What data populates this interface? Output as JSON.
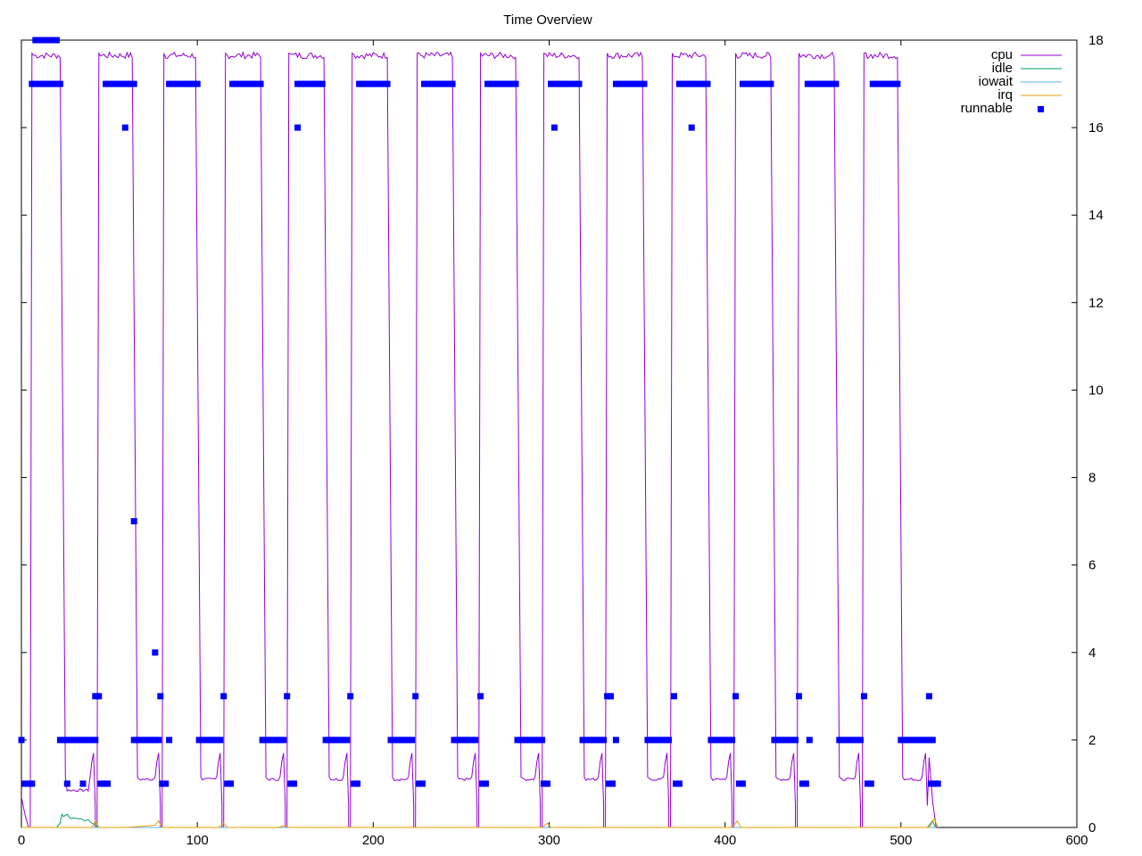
{
  "chart_data": {
    "type": "line",
    "title": "Time Overview",
    "xlabel": "",
    "ylabel": "",
    "xlim": [
      0,
      600
    ],
    "ylim": [
      0,
      18
    ],
    "x_ticks": [
      0,
      100,
      200,
      300,
      400,
      500,
      600
    ],
    "y_ticks": [
      0,
      2,
      4,
      6,
      8,
      10,
      12,
      14,
      16,
      18
    ],
    "y_axis_side": "right",
    "grid": false,
    "legend_position": "top-right",
    "cycles": [
      {
        "rise": 10,
        "fall": 22
      },
      {
        "rise": 48,
        "fall": 63
      },
      {
        "rise": 85,
        "fall": 99
      },
      {
        "rise": 120,
        "fall": 136
      },
      {
        "rise": 156,
        "fall": 172
      },
      {
        "rise": 192,
        "fall": 208
      },
      {
        "rise": 229,
        "fall": 245
      },
      {
        "rise": 265,
        "fall": 281
      },
      {
        "rise": 301,
        "fall": 317
      },
      {
        "rise": 337,
        "fall": 353
      },
      {
        "rise": 374,
        "fall": 389
      },
      {
        "rise": 410,
        "fall": 426
      },
      {
        "rise": 446,
        "fall": 462
      },
      {
        "rise": 483,
        "fall": 498
      }
    ],
    "runnable_points": [
      [
        0,
        2
      ],
      [
        2,
        1
      ],
      [
        4,
        1
      ],
      [
        6,
        1
      ],
      [
        8,
        18
      ],
      [
        10,
        18
      ],
      [
        12,
        18
      ],
      [
        14,
        18
      ],
      [
        16,
        18
      ],
      [
        18,
        18
      ],
      [
        20,
        18
      ],
      [
        6,
        17
      ],
      [
        8,
        17
      ],
      [
        10,
        17
      ],
      [
        12,
        17
      ],
      [
        14,
        17
      ],
      [
        16,
        17
      ],
      [
        18,
        17
      ],
      [
        20,
        17
      ],
      [
        22,
        17
      ],
      [
        22,
        2
      ],
      [
        24,
        2
      ],
      [
        26,
        2
      ],
      [
        28,
        2
      ],
      [
        30,
        2
      ],
      [
        32,
        2
      ],
      [
        34,
        2
      ],
      [
        36,
        2
      ],
      [
        38,
        2
      ],
      [
        40,
        2
      ],
      [
        42,
        2
      ],
      [
        26,
        1
      ],
      [
        35,
        1
      ],
      [
        42,
        3
      ],
      [
        44,
        3
      ],
      [
        45,
        1
      ],
      [
        47,
        1
      ],
      [
        49,
        1
      ],
      [
        48,
        17
      ],
      [
        50,
        17
      ],
      [
        52,
        17
      ],
      [
        54,
        17
      ],
      [
        56,
        17
      ],
      [
        58,
        17
      ],
      [
        60,
        17
      ],
      [
        62,
        17
      ],
      [
        64,
        17
      ],
      [
        59,
        16
      ],
      [
        64,
        7
      ],
      [
        64,
        2
      ],
      [
        66,
        2
      ],
      [
        68,
        2
      ],
      [
        70,
        2
      ],
      [
        72,
        2
      ],
      [
        74,
        2
      ],
      [
        76,
        2
      ],
      [
        78,
        2
      ],
      [
        84,
        2
      ],
      [
        76,
        4
      ],
      [
        79,
        3
      ],
      [
        80,
        1
      ],
      [
        82,
        1
      ],
      [
        84,
        17
      ],
      [
        86,
        17
      ],
      [
        88,
        17
      ],
      [
        90,
        17
      ],
      [
        92,
        17
      ],
      [
        94,
        17
      ],
      [
        96,
        17
      ],
      [
        98,
        17
      ],
      [
        100,
        17
      ],
      [
        101,
        2
      ],
      [
        103,
        2
      ],
      [
        105,
        2
      ],
      [
        107,
        2
      ],
      [
        109,
        2
      ],
      [
        111,
        2
      ],
      [
        113,
        2
      ],
      [
        115,
        3
      ],
      [
        117,
        1
      ],
      [
        119,
        1
      ],
      [
        120,
        17
      ],
      [
        122,
        17
      ],
      [
        124,
        17
      ],
      [
        126,
        17
      ],
      [
        128,
        17
      ],
      [
        130,
        17
      ],
      [
        132,
        17
      ],
      [
        134,
        17
      ],
      [
        136,
        17
      ],
      [
        137,
        2
      ],
      [
        139,
        2
      ],
      [
        141,
        2
      ],
      [
        143,
        2
      ],
      [
        145,
        2
      ],
      [
        147,
        2
      ],
      [
        149,
        2
      ],
      [
        151,
        3
      ],
      [
        153,
        1
      ],
      [
        155,
        1
      ],
      [
        157,
        16
      ],
      [
        157,
        17
      ],
      [
        159,
        17
      ],
      [
        161,
        17
      ],
      [
        163,
        17
      ],
      [
        165,
        17
      ],
      [
        167,
        17
      ],
      [
        169,
        17
      ],
      [
        171,
        17
      ],
      [
        173,
        2
      ],
      [
        175,
        2
      ],
      [
        177,
        2
      ],
      [
        179,
        2
      ],
      [
        181,
        2
      ],
      [
        183,
        2
      ],
      [
        185,
        2
      ],
      [
        187,
        3
      ],
      [
        189,
        1
      ],
      [
        191,
        1
      ],
      [
        192,
        17
      ],
      [
        194,
        17
      ],
      [
        196,
        17
      ],
      [
        198,
        17
      ],
      [
        200,
        17
      ],
      [
        202,
        17
      ],
      [
        204,
        17
      ],
      [
        206,
        17
      ],
      [
        208,
        17
      ],
      [
        210,
        2
      ],
      [
        212,
        2
      ],
      [
        214,
        2
      ],
      [
        216,
        2
      ],
      [
        218,
        2
      ],
      [
        220,
        2
      ],
      [
        222,
        2
      ],
      [
        224,
        3
      ],
      [
        226,
        1
      ],
      [
        228,
        1
      ],
      [
        229,
        17
      ],
      [
        231,
        17
      ],
      [
        233,
        17
      ],
      [
        235,
        17
      ],
      [
        237,
        17
      ],
      [
        239,
        17
      ],
      [
        241,
        17
      ],
      [
        243,
        17
      ],
      [
        245,
        17
      ],
      [
        246,
        2
      ],
      [
        248,
        2
      ],
      [
        250,
        2
      ],
      [
        252,
        2
      ],
      [
        254,
        2
      ],
      [
        256,
        2
      ],
      [
        258,
        2
      ],
      [
        261,
        3
      ],
      [
        262,
        1
      ],
      [
        264,
        1
      ],
      [
        265,
        17
      ],
      [
        267,
        17
      ],
      [
        269,
        17
      ],
      [
        271,
        17
      ],
      [
        273,
        17
      ],
      [
        275,
        17
      ],
      [
        277,
        17
      ],
      [
        279,
        17
      ],
      [
        281,
        17
      ],
      [
        282,
        2
      ],
      [
        284,
        2
      ],
      [
        286,
        2
      ],
      [
        288,
        2
      ],
      [
        290,
        2
      ],
      [
        292,
        2
      ],
      [
        294,
        2
      ],
      [
        296,
        2
      ],
      [
        297,
        1
      ],
      [
        299,
        1
      ],
      [
        303,
        16
      ],
      [
        301,
        17
      ],
      [
        303,
        17
      ],
      [
        305,
        17
      ],
      [
        307,
        17
      ],
      [
        309,
        17
      ],
      [
        311,
        17
      ],
      [
        313,
        17
      ],
      [
        315,
        17
      ],
      [
        317,
        17
      ],
      [
        319,
        2
      ],
      [
        321,
        2
      ],
      [
        323,
        2
      ],
      [
        325,
        2
      ],
      [
        327,
        2
      ],
      [
        329,
        2
      ],
      [
        331,
        2
      ],
      [
        333,
        3
      ],
      [
        335,
        3
      ],
      [
        334,
        1
      ],
      [
        336,
        1
      ],
      [
        338,
        2
      ],
      [
        338,
        17
      ],
      [
        340,
        17
      ],
      [
        342,
        17
      ],
      [
        344,
        17
      ],
      [
        346,
        17
      ],
      [
        348,
        17
      ],
      [
        350,
        17
      ],
      [
        352,
        17
      ],
      [
        354,
        17
      ],
      [
        356,
        2
      ],
      [
        358,
        2
      ],
      [
        360,
        2
      ],
      [
        362,
        2
      ],
      [
        364,
        2
      ],
      [
        366,
        2
      ],
      [
        368,
        2
      ],
      [
        371,
        3
      ],
      [
        372,
        1
      ],
      [
        374,
        1
      ],
      [
        381,
        16
      ],
      [
        374,
        17
      ],
      [
        376,
        17
      ],
      [
        378,
        17
      ],
      [
        380,
        17
      ],
      [
        382,
        17
      ],
      [
        384,
        17
      ],
      [
        386,
        17
      ],
      [
        388,
        17
      ],
      [
        390,
        17
      ],
      [
        392,
        2
      ],
      [
        394,
        2
      ],
      [
        396,
        2
      ],
      [
        398,
        2
      ],
      [
        400,
        2
      ],
      [
        402,
        2
      ],
      [
        404,
        2
      ],
      [
        406,
        3
      ],
      [
        408,
        1
      ],
      [
        410,
        1
      ],
      [
        410,
        17
      ],
      [
        412,
        17
      ],
      [
        414,
        17
      ],
      [
        416,
        17
      ],
      [
        418,
        17
      ],
      [
        420,
        17
      ],
      [
        422,
        17
      ],
      [
        424,
        17
      ],
      [
        426,
        17
      ],
      [
        428,
        2
      ],
      [
        430,
        2
      ],
      [
        432,
        2
      ],
      [
        434,
        2
      ],
      [
        436,
        2
      ],
      [
        438,
        2
      ],
      [
        440,
        2
      ],
      [
        442,
        3
      ],
      [
        444,
        1
      ],
      [
        446,
        1
      ],
      [
        448,
        2
      ],
      [
        447,
        17
      ],
      [
        449,
        17
      ],
      [
        451,
        17
      ],
      [
        453,
        17
      ],
      [
        455,
        17
      ],
      [
        457,
        17
      ],
      [
        459,
        17
      ],
      [
        461,
        17
      ],
      [
        463,
        17
      ],
      [
        465,
        2
      ],
      [
        467,
        2
      ],
      [
        469,
        2
      ],
      [
        471,
        2
      ],
      [
        473,
        2
      ],
      [
        475,
        2
      ],
      [
        477,
        2
      ],
      [
        479,
        3
      ],
      [
        481,
        1
      ],
      [
        483,
        1
      ],
      [
        484,
        17
      ],
      [
        486,
        17
      ],
      [
        488,
        17
      ],
      [
        490,
        17
      ],
      [
        492,
        17
      ],
      [
        494,
        17
      ],
      [
        496,
        17
      ],
      [
        498,
        17
      ],
      [
        500,
        2
      ],
      [
        502,
        2
      ],
      [
        504,
        2
      ],
      [
        506,
        2
      ],
      [
        508,
        2
      ],
      [
        510,
        2
      ],
      [
        512,
        2
      ],
      [
        514,
        2
      ],
      [
        516,
        2
      ],
      [
        518,
        2
      ],
      [
        516,
        3
      ],
      [
        517,
        1
      ],
      [
        519,
        1
      ],
      [
        521,
        1
      ]
    ],
    "series": [
      {
        "name": "cpu",
        "color": "#9400d3",
        "style": "line"
      },
      {
        "name": "idle",
        "color": "#009e73",
        "style": "line"
      },
      {
        "name": "iowait",
        "color": "#56b4e9",
        "style": "line"
      },
      {
        "name": "irq",
        "color": "#e69f00",
        "style": "line"
      },
      {
        "name": "runnable",
        "color": "#0000ff",
        "style": "points"
      }
    ],
    "idle_points": [
      [
        20,
        0
      ],
      [
        22,
        0.1
      ],
      [
        23,
        0.3
      ],
      [
        24,
        0.25
      ],
      [
        26,
        0.3
      ],
      [
        28,
        0.2
      ],
      [
        30,
        0.22
      ],
      [
        32,
        0.2
      ],
      [
        34,
        0.2
      ],
      [
        36,
        0.15
      ],
      [
        38,
        0.18
      ],
      [
        40,
        0.1
      ],
      [
        42,
        0.05
      ],
      [
        44,
        0
      ],
      [
        515,
        0
      ],
      [
        517,
        0.1
      ],
      [
        518,
        0.15
      ],
      [
        519,
        0.05
      ],
      [
        520,
        0
      ]
    ],
    "irq_points": [
      [
        0,
        0
      ],
      [
        40,
        0
      ],
      [
        42,
        0.15
      ],
      [
        44,
        0
      ],
      [
        60,
        0
      ],
      [
        76,
        0.05
      ],
      [
        78,
        0.15
      ],
      [
        80,
        0
      ],
      [
        112,
        0
      ],
      [
        115,
        0.1
      ],
      [
        117,
        0
      ],
      [
        146,
        0
      ],
      [
        150,
        0.05
      ],
      [
        152,
        0
      ],
      [
        296,
        0
      ],
      [
        299,
        0.1
      ],
      [
        301,
        0
      ],
      [
        404,
        0
      ],
      [
        407,
        0.15
      ],
      [
        409,
        0
      ],
      [
        516,
        0
      ],
      [
        519,
        0.2
      ],
      [
        521,
        0
      ]
    ],
    "iowait_points": [
      [
        0,
        0
      ],
      [
        520,
        0
      ]
    ]
  }
}
